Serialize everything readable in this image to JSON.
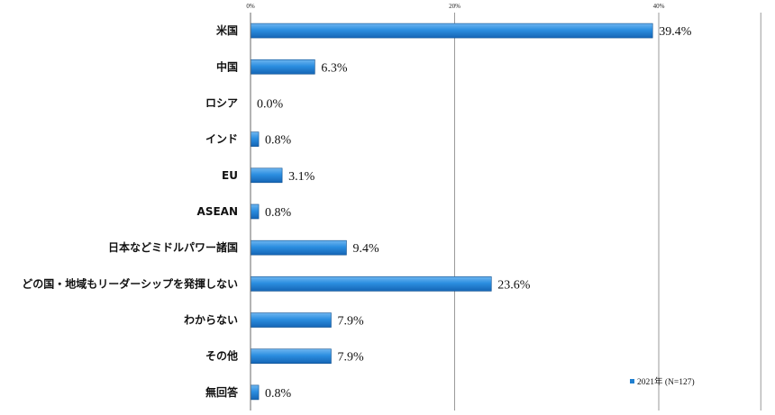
{
  "chart_data": {
    "type": "bar",
    "orientation": "horizontal",
    "categories": [
      "米国",
      "中国",
      "ロシア",
      "インド",
      "EU",
      "ASEAN",
      "日本などミドルパワー諸国",
      "どの国・地域もリーダーシップを発揮しない",
      "わからない",
      "その他",
      "無回答"
    ],
    "series": [
      {
        "name": "2021年 (N=127)",
        "values": [
          39.4,
          6.3,
          0.0,
          0.8,
          3.1,
          0.8,
          9.4,
          23.6,
          7.9,
          7.9,
          0.8
        ],
        "data_labels": [
          "39.4%",
          "6.3%",
          "0.0%",
          "0.8%",
          "3.1%",
          "0.8%",
          "9.4%",
          "23.6%",
          "7.9%",
          "7.9%",
          "0.8%"
        ],
        "color": "#1f7fd0"
      }
    ],
    "xlim": [
      0,
      50
    ],
    "x_ticks": [
      0,
      20,
      40
    ],
    "x_tick_labels": [
      "0%",
      "20%",
      "40%"
    ],
    "grid": true,
    "legend_position": "bottom-right"
  }
}
